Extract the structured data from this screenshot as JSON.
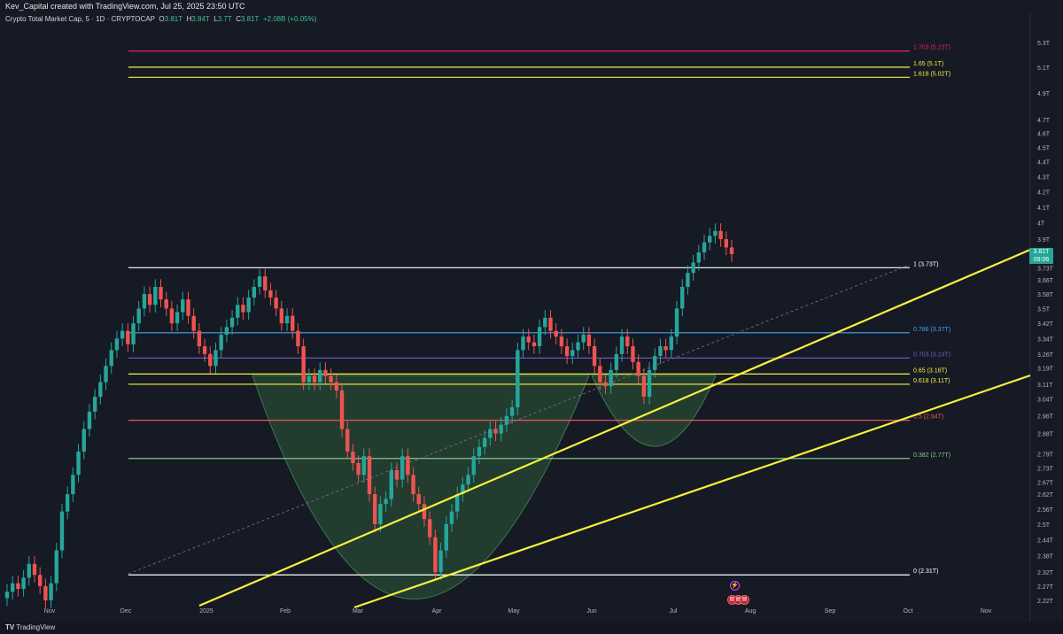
{
  "header": {
    "attribution": "Kev_Capital created with TradingView.com, Jul 25, 2025 23:50 UTC"
  },
  "legend": {
    "symbol": "Crypto Total Market Cap, 5 · 1D · CRYPTOCAP",
    "open_label": "O",
    "open": "3.81T",
    "high_label": "H",
    "high": "3.84T",
    "low_label": "L",
    "low": "3.7T",
    "close_label": "C",
    "close": "3.81T",
    "change": "+2.08B (+0.05%)"
  },
  "price_tag": {
    "price": "3.81T",
    "countdown": "09:06"
  },
  "footer": {
    "brand": "TradingView",
    "logo": "tv-logo-icon"
  },
  "events": {
    "bolt_icon": "lightning-icon",
    "flags": [
      "us-flag-icon",
      "us-flag-icon",
      "us-flag-icon"
    ]
  },
  "colors": {
    "background": "#161a25",
    "up": "#26a69a",
    "down": "#ef5350",
    "trendline": "#f7f13a",
    "cup_fill": "#2e5a3a"
  },
  "chart_data": {
    "type": "candlestick",
    "y_scale": "log",
    "y_ticks": [
      "5.3T",
      "5.1T",
      "4.9T",
      "4.7T",
      "4.6T",
      "4.5T",
      "4.4T",
      "4.3T",
      "4.2T",
      "4.1T",
      "4T",
      "3.9T",
      "3.81T",
      "3.73T",
      "3.66T",
      "3.58T",
      "3.5T",
      "3.42T",
      "3.34T",
      "3.26T",
      "3.19T",
      "3.11T",
      "3.04T",
      "2.96T",
      "2.88T",
      "2.79T",
      "2.73T",
      "2.67T",
      "2.62T",
      "2.56T",
      "2.5T",
      "2.44T",
      "2.38T",
      "2.32T",
      "2.27T",
      "2.22T"
    ],
    "x_ticks": [
      "Nov",
      "Dec",
      "2025",
      "Feb",
      "Mar",
      "Apr",
      "May",
      "Jun",
      "Jul",
      "Aug",
      "Sep",
      "Oct",
      "Nov"
    ],
    "fib_levels": [
      {
        "label": "1.703 (5.23T)",
        "value": 5.23,
        "color": "#e91e63"
      },
      {
        "label": "1.65 (5.1T)",
        "value": 5.1,
        "color": "#f7f13a"
      },
      {
        "label": "1.618 (5.02T)",
        "value": 5.02,
        "color": "#f7f13a"
      },
      {
        "label": "1 (3.73T)",
        "value": 3.73,
        "color": "#ffffff"
      },
      {
        "label": "0.786 (3.37T)",
        "value": 3.37,
        "color": "#42a5f5"
      },
      {
        "label": "0.703 (3.24T)",
        "value": 3.24,
        "color": "#7e57c2"
      },
      {
        "label": "0.65 (3.16T)",
        "value": 3.16,
        "color": "#f7f13a"
      },
      {
        "label": "0.618 (3.11T)",
        "value": 3.11,
        "color": "#f7f13a"
      },
      {
        "label": "0.5 (2.94T)",
        "value": 2.94,
        "color": "#ef5350"
      },
      {
        "label": "0.382 (2.77T)",
        "value": 2.77,
        "color": "#81c784"
      },
      {
        "label": "0 (2.31T)",
        "value": 2.31,
        "color": "#ffffff"
      }
    ],
    "closes": [
      2.25,
      2.28,
      2.26,
      2.3,
      2.35,
      2.31,
      2.27,
      2.22,
      2.28,
      2.4,
      2.55,
      2.62,
      2.7,
      2.8,
      2.9,
      2.98,
      3.05,
      3.12,
      3.2,
      3.28,
      3.34,
      3.38,
      3.31,
      3.42,
      3.5,
      3.58,
      3.52,
      3.62,
      3.55,
      3.5,
      3.42,
      3.48,
      3.55,
      3.46,
      3.38,
      3.3,
      3.26,
      3.2,
      3.28,
      3.36,
      3.4,
      3.45,
      3.52,
      3.48,
      3.56,
      3.62,
      3.68,
      3.6,
      3.56,
      3.5,
      3.42,
      3.46,
      3.38,
      3.3,
      3.12,
      3.15,
      3.12,
      3.18,
      3.15,
      3.12,
      3.08,
      2.9,
      2.8,
      2.75,
      2.7,
      2.78,
      2.62,
      2.5,
      2.58,
      2.6,
      2.72,
      2.68,
      2.78,
      2.7,
      2.62,
      2.58,
      2.52,
      2.45,
      2.32,
      2.4,
      2.5,
      2.55,
      2.62,
      2.66,
      2.7,
      2.78,
      2.82,
      2.86,
      2.9,
      2.88,
      2.92,
      2.96,
      3.0,
      3.28,
      3.35,
      3.32,
      3.3,
      3.4,
      3.45,
      3.38,
      3.35,
      3.3,
      3.25,
      3.28,
      3.32,
      3.36,
      3.3,
      3.2,
      3.12,
      3.1,
      3.18,
      3.26,
      3.35,
      3.3,
      3.22,
      3.15,
      3.05,
      3.18,
      3.25,
      3.3,
      3.28,
      3.35,
      3.5,
      3.62,
      3.7,
      3.76,
      3.82,
      3.88,
      3.92,
      3.95,
      3.9,
      3.85,
      3.81
    ]
  }
}
